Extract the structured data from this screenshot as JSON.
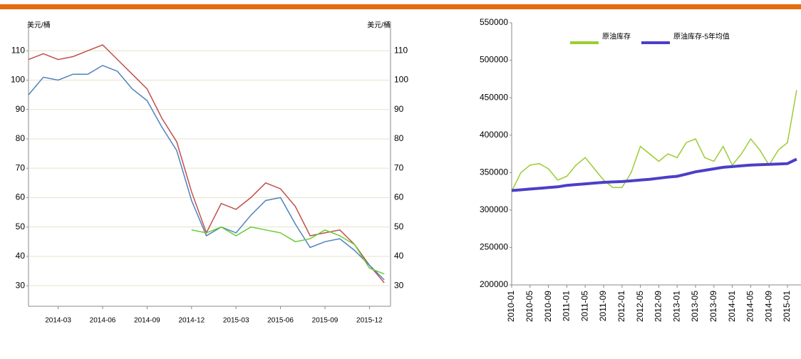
{
  "chart_data": [
    {
      "type": "line",
      "ylabel": "美元/桶",
      "categories": [
        null,
        null,
        "2014-03",
        null,
        null,
        "2014-06",
        null,
        null,
        "2014-09",
        null,
        null,
        "2014-12",
        null,
        null,
        "2015-03",
        null,
        null,
        "2015-06",
        null,
        null,
        "2015-09",
        null,
        null,
        "2015-12",
        null
      ],
      "series": [
        {
          "color": "#c0504d",
          "values": [
            107,
            109,
            107,
            108,
            110,
            112,
            107,
            102,
            97,
            87,
            79,
            62,
            48,
            58,
            56,
            60,
            65,
            63,
            57,
            47,
            48,
            49,
            44,
            37,
            31
          ]
        },
        {
          "color": "#4f81bd",
          "values": [
            95,
            101,
            100,
            102,
            102,
            105,
            103,
            97,
            93,
            84,
            76,
            59,
            47,
            50,
            48,
            54,
            59,
            60,
            51,
            43,
            45,
            46,
            42,
            37,
            32
          ]
        },
        {
          "color": "#66cc33",
          "values": [
            null,
            null,
            null,
            null,
            null,
            null,
            null,
            null,
            null,
            null,
            null,
            49,
            48,
            50,
            47,
            50,
            49,
            48,
            45,
            46,
            49,
            47,
            44,
            36,
            34
          ]
        }
      ],
      "ylim": [
        23,
        120
      ],
      "yticks": [
        30,
        40,
        50,
        60,
        70,
        80,
        90,
        100,
        110
      ],
      "grid": true
    },
    {
      "type": "line",
      "categories": [
        "2010-01",
        null,
        "2010-05",
        null,
        "2010-09",
        null,
        "2011-01",
        null,
        "2011-05",
        null,
        "2011-09",
        null,
        "2012-01",
        null,
        "2012-05",
        null,
        "2012-09",
        null,
        "2013-01",
        null,
        "2013-05",
        null,
        "2013-09",
        null,
        "2014-01",
        null,
        "2014-05",
        null,
        "2014-09",
        null,
        "2015-01",
        null
      ],
      "series": [
        {
          "name": "原油库存",
          "color": "#9acd32",
          "values": [
            325000,
            350000,
            360000,
            362000,
            355000,
            340000,
            345000,
            360000,
            370000,
            355000,
            340000,
            330000,
            330000,
            350000,
            385000,
            375000,
            365000,
            375000,
            370000,
            390000,
            395000,
            370000,
            365000,
            385000,
            360000,
            375000,
            395000,
            380000,
            360000,
            380000,
            390000,
            460000
          ]
        },
        {
          "name": "原油库存-5年均值",
          "color": "#4b3fc7",
          "values": [
            326000,
            327000,
            328000,
            329000,
            330000,
            331000,
            333000,
            334000,
            335000,
            336000,
            337000,
            337500,
            338000,
            339000,
            340000,
            341000,
            342500,
            344000,
            345000,
            348000,
            351000,
            353000,
            355000,
            357000,
            358000,
            359000,
            360000,
            360500,
            361000,
            361500,
            362000,
            368000
          ]
        }
      ],
      "ylim": [
        200000,
        550000
      ],
      "yticks": [
        200000,
        250000,
        300000,
        350000,
        400000,
        450000,
        500000,
        550000
      ],
      "grid": false
    }
  ]
}
